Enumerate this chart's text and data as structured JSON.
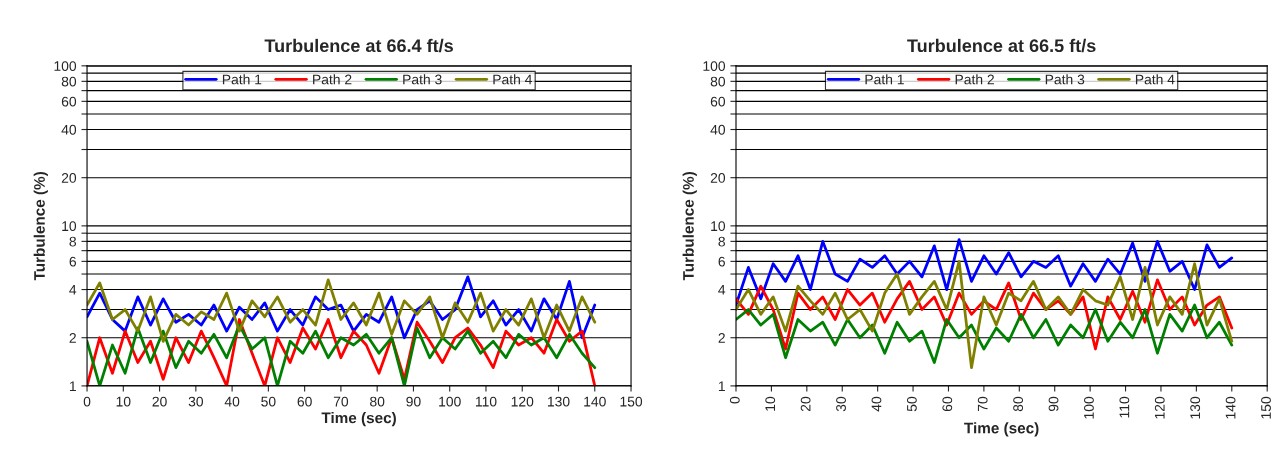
{
  "chart_data": [
    {
      "type": "line",
      "title": "Turbulence at 66.4 ft/s",
      "xlabel": "Time (sec)",
      "ylabel": "Turbulence (%)",
      "log": "y",
      "grid": "y",
      "legend": "top",
      "marker": "none",
      "line_style": "solid",
      "x": [
        0,
        3.5,
        7,
        10.5,
        14,
        17.5,
        21,
        24.5,
        28,
        31.5,
        35,
        38.5,
        42,
        45.5,
        49,
        52.5,
        56,
        59.5,
        63,
        66.5,
        70,
        73.5,
        77,
        80.5,
        84,
        87.5,
        91,
        94.5,
        98,
        101.5,
        105,
        108.5,
        112,
        115.5,
        119,
        122.5,
        126,
        129.5,
        133,
        136.5,
        140
      ],
      "xlim": [
        0,
        150
      ],
      "xticks": [
        0,
        10,
        20,
        30,
        40,
        50,
        60,
        70,
        80,
        90,
        100,
        110,
        120,
        130,
        140,
        150
      ],
      "ylim": [
        1,
        100
      ],
      "yticks": [
        1,
        2,
        {
          "value": 3,
          "label": null
        },
        4,
        {
          "value": 5,
          "label": null
        },
        6,
        {
          "value": 7,
          "label": null
        },
        8,
        {
          "value": 9,
          "label": null
        },
        10,
        20,
        {
          "value": 30,
          "label": null
        },
        40,
        {
          "value": 50,
          "label": null
        },
        60,
        {
          "value": 70,
          "label": null
        },
        80,
        {
          "value": 90,
          "label": null
        },
        100
      ],
      "series": [
        {
          "name": "Path 1",
          "color": "#0000ff",
          "values": [
            2.7,
            3.8,
            2.6,
            2.2,
            3.6,
            2.4,
            3.5,
            2.5,
            2.8,
            2.4,
            3.2,
            2.2,
            3.1,
            2.6,
            3.3,
            2.2,
            3.0,
            2.4,
            3.6,
            3.0,
            3.2,
            2.2,
            2.8,
            2.5,
            3.6,
            2.0,
            3.0,
            3.4,
            2.6,
            3.0,
            4.8,
            2.7,
            3.4,
            2.4,
            3.0,
            2.2,
            3.5,
            2.6,
            4.5,
            2.0,
            3.2
          ]
        },
        {
          "name": "Path 2",
          "color": "#ff0000",
          "values": [
            1.0,
            2.0,
            1.2,
            2.2,
            1.4,
            1.9,
            1.1,
            2.0,
            1.4,
            2.2,
            1.5,
            1.0,
            2.6,
            1.6,
            1.0,
            2.0,
            1.4,
            2.3,
            1.7,
            2.6,
            1.5,
            2.2,
            1.8,
            1.2,
            2.0,
            1.1,
            2.5,
            1.9,
            1.4,
            2.0,
            2.3,
            1.8,
            1.3,
            2.2,
            1.8,
            2.0,
            1.6,
            2.6,
            1.9,
            2.2,
            1.0
          ]
        },
        {
          "name": "Path 3",
          "color": "#008000",
          "values": [
            1.9,
            1.0,
            1.8,
            1.2,
            2.3,
            1.4,
            2.2,
            1.3,
            1.9,
            1.6,
            2.1,
            1.5,
            2.4,
            1.7,
            2.0,
            1.0,
            1.9,
            1.6,
            2.2,
            1.5,
            2.0,
            1.8,
            2.1,
            1.6,
            2.0,
            1.0,
            2.3,
            1.5,
            2.0,
            1.7,
            2.2,
            1.6,
            1.9,
            1.5,
            2.1,
            1.8,
            2.0,
            1.5,
            2.1,
            1.6,
            1.3
          ]
        },
        {
          "name": "Path 4",
          "color": "#808000",
          "values": [
            3.2,
            4.4,
            2.6,
            3.0,
            2.2,
            3.6,
            1.9,
            2.8,
            2.4,
            2.9,
            2.6,
            3.8,
            2.2,
            3.4,
            2.7,
            3.6,
            2.5,
            3.0,
            2.4,
            4.6,
            2.6,
            3.3,
            2.4,
            3.8,
            2.1,
            3.4,
            2.8,
            3.6,
            2.0,
            3.3,
            2.5,
            3.8,
            2.2,
            3.0,
            2.4,
            3.5,
            2.0,
            3.2,
            2.2,
            3.6,
            2.5
          ]
        }
      ]
    },
    {
      "type": "line",
      "title": "Turbulence at 66.5 ft/s",
      "xlabel": "Time (sec)",
      "ylabel": "Turbulence (%)",
      "log": "y",
      "grid": "y",
      "legend": "top",
      "marker": "none",
      "line_style": "solid",
      "x": [
        0,
        3.5,
        7,
        10.5,
        14,
        17.5,
        21,
        24.5,
        28,
        31.5,
        35,
        38.5,
        42,
        45.5,
        49,
        52.5,
        56,
        59.5,
        63,
        66.5,
        70,
        73.5,
        77,
        80.5,
        84,
        87.5,
        91,
        94.5,
        98,
        101.5,
        105,
        108.5,
        112,
        115.5,
        119,
        122.5,
        126,
        129.5,
        133,
        136.5,
        140
      ],
      "xlim": [
        0,
        150
      ],
      "xticks": [
        0,
        10,
        20,
        30,
        40,
        50,
        60,
        70,
        80,
        90,
        100,
        110,
        120,
        130,
        140,
        150
      ],
      "ylim": [
        1,
        100
      ],
      "yticks": [
        1,
        2,
        {
          "value": 3,
          "label": null
        },
        4,
        {
          "value": 5,
          "label": null
        },
        6,
        {
          "value": 7,
          "label": null
        },
        8,
        {
          "value": 9,
          "label": null
        },
        10,
        20,
        {
          "value": 30,
          "label": null
        },
        40,
        {
          "value": 50,
          "label": null
        },
        60,
        {
          "value": 70,
          "label": null
        },
        80,
        {
          "value": 90,
          "label": null
        },
        100
      ],
      "series": [
        {
          "name": "Path 1",
          "color": "#0000ff",
          "values": [
            3.2,
            5.5,
            3.5,
            5.8,
            4.5,
            6.5,
            4.0,
            8.0,
            5.0,
            4.5,
            6.2,
            5.5,
            6.5,
            5.0,
            6.0,
            4.8,
            7.5,
            4.0,
            8.2,
            4.5,
            6.5,
            5.0,
            6.8,
            4.8,
            6.0,
            5.5,
            6.5,
            4.2,
            5.8,
            4.5,
            6.2,
            5.0,
            7.8,
            4.5,
            8.0,
            5.2,
            6.0,
            4.0,
            7.6,
            5.5,
            6.3
          ]
        },
        {
          "name": "Path 2",
          "color": "#ff0000",
          "values": [
            3.5,
            2.8,
            4.2,
            3.0,
            1.7,
            3.8,
            3.0,
            3.6,
            2.6,
            4.0,
            3.2,
            3.8,
            2.5,
            3.5,
            4.5,
            3.0,
            3.6,
            2.4,
            3.8,
            2.8,
            3.4,
            3.0,
            4.4,
            2.6,
            3.8,
            3.0,
            3.4,
            2.8,
            3.6,
            1.7,
            3.6,
            2.6,
            3.9,
            2.5,
            4.6,
            3.0,
            3.6,
            2.4,
            3.2,
            3.6,
            2.3
          ]
        },
        {
          "name": "Path 3",
          "color": "#008000",
          "values": [
            2.6,
            3.0,
            2.4,
            2.8,
            1.5,
            2.6,
            2.2,
            2.5,
            1.8,
            2.6,
            2.0,
            2.4,
            1.6,
            2.5,
            1.9,
            2.2,
            1.4,
            2.6,
            2.0,
            2.4,
            1.7,
            2.3,
            1.9,
            2.8,
            2.0,
            2.6,
            1.8,
            2.4,
            2.0,
            3.0,
            1.9,
            2.5,
            2.0,
            3.0,
            1.6,
            2.8,
            2.2,
            3.2,
            2.0,
            2.5,
            1.8
          ]
        },
        {
          "name": "Path 4",
          "color": "#808000",
          "values": [
            3.0,
            4.0,
            2.8,
            3.6,
            2.2,
            4.2,
            3.4,
            2.8,
            3.8,
            2.6,
            3.0,
            2.2,
            3.8,
            5.0,
            2.8,
            3.6,
            4.5,
            3.0,
            6.0,
            1.3,
            3.6,
            2.4,
            3.8,
            3.4,
            4.5,
            3.0,
            3.6,
            2.8,
            4.0,
            3.4,
            3.2,
            4.8,
            2.6,
            5.5,
            2.4,
            3.6,
            2.8,
            5.8,
            2.4,
            3.5,
            1.9
          ]
        }
      ]
    }
  ]
}
